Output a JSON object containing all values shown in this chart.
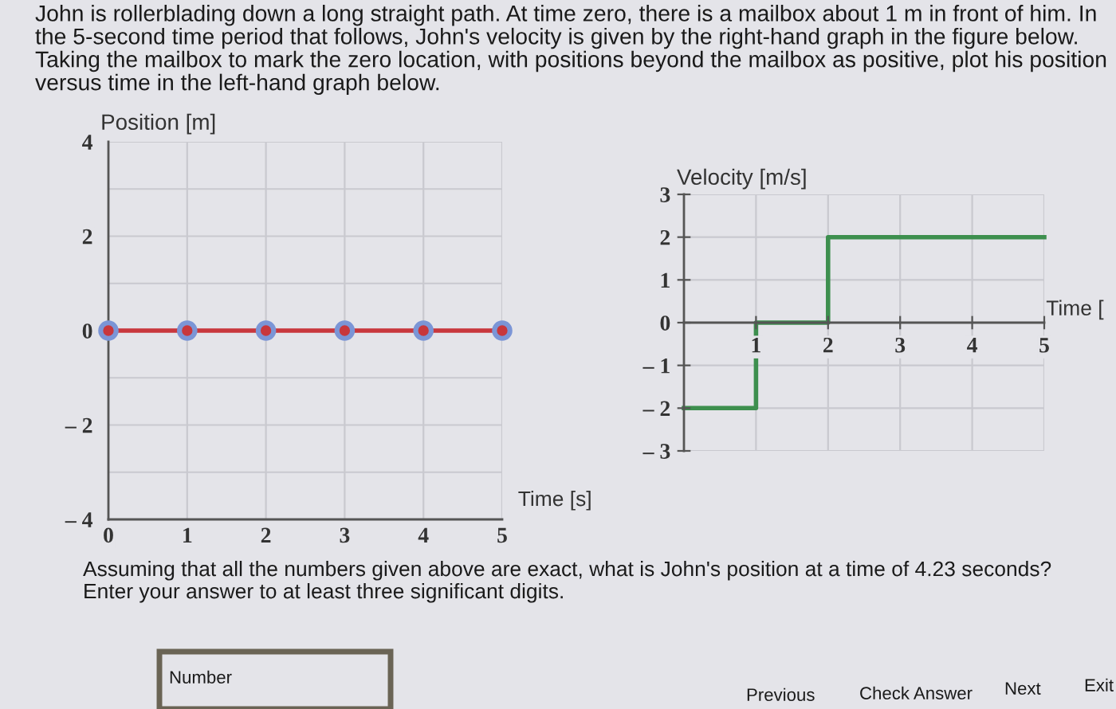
{
  "chart_data": [
    {
      "type": "line",
      "title": "John is rollerblading down a long straight path. At time zero, there is a mailbox about 1 m in front of him. In the 5-second time period that follows, John's velocity is given by the right-hand graph in the figure below. Taking the mailbox to mark the zero location, with positions beyond the mailbox as positive, plot his position versus time in the left-hand graph below.",
      "ylabel": "Position [m]",
      "xlabel": "Time [s]",
      "x": [
        0,
        1,
        2,
        3,
        4,
        5
      ],
      "series": [
        {
          "color": "#c8373c",
          "values": [
            0,
            0,
            0,
            0,
            0,
            0
          ]
        }
      ],
      "xlim": [
        0,
        5
      ],
      "ylim": [
        -4,
        4
      ],
      "xticks": [
        0,
        1,
        2,
        3,
        4,
        5
      ],
      "yticks": [
        {
          "value": -4,
          "label": "– 4"
        },
        {
          "value": -3,
          "label": null
        },
        {
          "value": -2,
          "label": "– 2"
        },
        {
          "value": -1,
          "label": null
        },
        0,
        {
          "value": 1,
          "label": null
        },
        2,
        {
          "value": 3,
          "label": null
        },
        4
      ],
      "grid": true,
      "marker": "circle",
      "line_style": "solid"
    },
    {
      "type": "step",
      "ylabel": "Velocity [m/s]",
      "xlabel": "Time [",
      "x": [
        0,
        1,
        2,
        5
      ],
      "series": [
        {
          "color": "#3d8f4e",
          "values": [
            -2,
            0,
            2,
            2
          ]
        }
      ],
      "xlim": [
        0,
        5
      ],
      "ylim": [
        -3,
        3
      ],
      "xticks": [
        1,
        2,
        3,
        4,
        5
      ],
      "yticks": [
        {
          "value": -3,
          "label": "– 3"
        },
        {
          "value": -2,
          "label": "– 2"
        },
        {
          "value": -1,
          "label": "– 1"
        },
        0,
        1,
        2,
        3
      ],
      "grid": true,
      "line_style": "solid",
      "annotations": [
        "Assuming that all the numbers given above are exact, what is John's position at a time of 4.23 seconds?",
        "Enter your answer to at least three significant digits.",
        "Number",
        "Previous",
        "Check Answer",
        "Next",
        "Exit"
      ]
    }
  ]
}
